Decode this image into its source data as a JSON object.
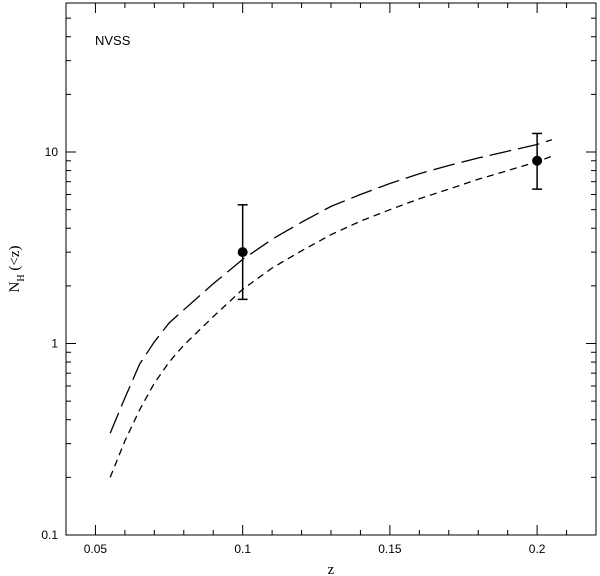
{
  "chart_data": {
    "type": "line",
    "xlabel": "z",
    "ylabel_main": "N",
    "ylabel_sub": "H",
    "ylabel_tail": " (<z)",
    "annotation": "NVSS",
    "xlim": [
      0.04,
      0.22
    ],
    "ylim": [
      0.1,
      60
    ],
    "yscale": "log",
    "grid": false,
    "xticks": [
      {
        "value": 0.05,
        "label": "0.05"
      },
      {
        "value": 0.1,
        "label": "0.1"
      },
      {
        "value": 0.15,
        "label": "0.15"
      },
      {
        "value": 0.2,
        "label": "0.2"
      }
    ],
    "yticks": [
      {
        "value": 0.1,
        "label": "0.1"
      },
      {
        "value": 1,
        "label": "1"
      },
      {
        "value": 10,
        "label": "10"
      }
    ],
    "series": [
      {
        "style": "long-dash",
        "x": [
          0.055,
          0.06,
          0.065,
          0.07,
          0.075,
          0.08,
          0.09,
          0.1,
          0.11,
          0.12,
          0.13,
          0.14,
          0.15,
          0.16,
          0.17,
          0.18,
          0.19,
          0.2,
          0.205
        ],
        "y": [
          0.34,
          0.52,
          0.78,
          1.02,
          1.28,
          1.5,
          2.05,
          2.75,
          3.5,
          4.3,
          5.2,
          6.0,
          6.85,
          7.7,
          8.5,
          9.3,
          10.1,
          10.95,
          11.6
        ]
      },
      {
        "style": "short-dash",
        "x": [
          0.055,
          0.06,
          0.065,
          0.07,
          0.075,
          0.08,
          0.09,
          0.1,
          0.11,
          0.12,
          0.13,
          0.14,
          0.15,
          0.16,
          0.17,
          0.18,
          0.19,
          0.2,
          0.205
        ],
        "y": [
          0.2,
          0.31,
          0.45,
          0.62,
          0.8,
          0.98,
          1.38,
          1.92,
          2.48,
          3.05,
          3.7,
          4.35,
          5.0,
          5.7,
          6.4,
          7.2,
          8.0,
          8.9,
          9.5
        ]
      }
    ],
    "points": [
      {
        "x": 0.1,
        "y": 3.0,
        "yerr_low": 1.7,
        "yerr_high": 5.3
      },
      {
        "x": 0.2,
        "y": 9.0,
        "yerr_low": 6.4,
        "yerr_high": 12.5
      }
    ]
  }
}
